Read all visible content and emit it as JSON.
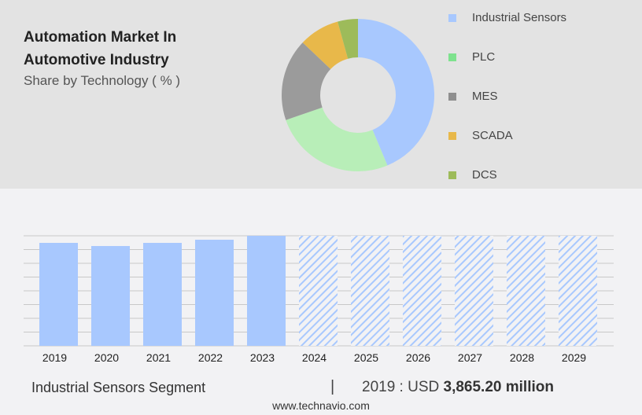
{
  "header": {
    "title": "Automation Market In Automotive Industry",
    "subtitle": "Share by Technology ( % )"
  },
  "chart_data": [
    {
      "type": "pie",
      "variant": "donut",
      "labels": [
        "Industrial Sensors",
        "PLC",
        "MES",
        "SCADA",
        "DCS"
      ],
      "values": [
        43.7,
        26.0,
        17.4,
        8.6,
        4.3
      ],
      "colors": [
        "#a8c8fe",
        "#b8eeb8",
        "#9b9b9b",
        "#e8b84a",
        "#9dbb5a"
      ],
      "legend_colors": [
        "#a8c8fe",
        "#7ee28e",
        "#8f8f8f",
        "#e8b84a",
        "#9dbb5a"
      ],
      "legend": "right"
    },
    {
      "type": "bar",
      "categories": [
        "2019",
        "2020",
        "2021",
        "2022",
        "2023",
        "2024",
        "2025",
        "2026",
        "2027",
        "2028",
        "2029"
      ],
      "values": [
        3865.2,
        3747,
        3865,
        3983,
        4131,
        null,
        null,
        null,
        null,
        null,
        null
      ],
      "forecast_from": "2024",
      "color": "#a8c8fe",
      "grid": true,
      "ylim": [
        0,
        4131
      ]
    }
  ],
  "footer": {
    "segment": "Industrial Sensors Segment",
    "separator": "|",
    "year_label": "2019 : USD",
    "value": "3,865.20 million",
    "url": "www.technavio.com"
  }
}
